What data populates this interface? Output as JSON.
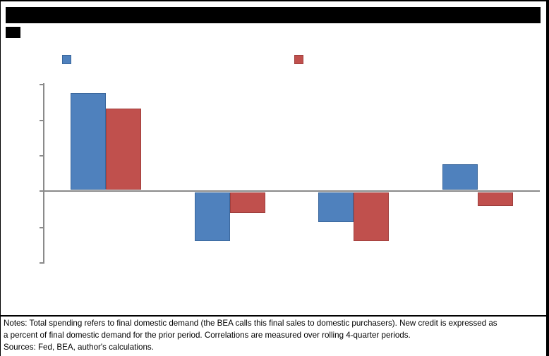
{
  "figure": {
    "notes": {
      "line1": "Notes: Total spending refers to final domestic demand (the BEA calls this final sales to domestic purchasers). New credit is expressed as",
      "line2": "a percent of final domestic demand for the prior period. Correlations are measured over rolling 4-quarter periods.",
      "line3": "Sources: Fed, BEA, author's calculations."
    }
  },
  "colors": {
    "series_blue": "#4F81BD",
    "series_blue_border": "#3A679C",
    "series_red": "#C0504D",
    "series_red_border": "#A03F3D",
    "axis": "#8A8A8A",
    "redaction": "#000000",
    "background": "#FFFFFF",
    "text": "#000000"
  },
  "chart_data": {
    "type": "bar",
    "title": "",
    "categories": [
      "",
      "",
      "",
      ""
    ],
    "series": [
      {
        "name": "blue",
        "color": "#4F81BD",
        "values": [
          0.275,
          -0.14,
          -0.085,
          0.075
        ]
      },
      {
        "name": "red",
        "color": "#C0504D",
        "values": [
          0.23,
          -0.06,
          -0.14,
          -0.04
        ]
      }
    ],
    "ylim": [
      -0.2,
      0.3
    ],
    "ytick_step": 0.1,
    "grid": false,
    "legend_position": "top",
    "tick_labels_visible": false,
    "redacted_elements": [
      "title",
      "legend_labels",
      "y_tick_labels",
      "x_category_labels"
    ],
    "value_note": "values estimated in gridline units (one gridline = 0.1); numeric labels are blacked out in source"
  }
}
